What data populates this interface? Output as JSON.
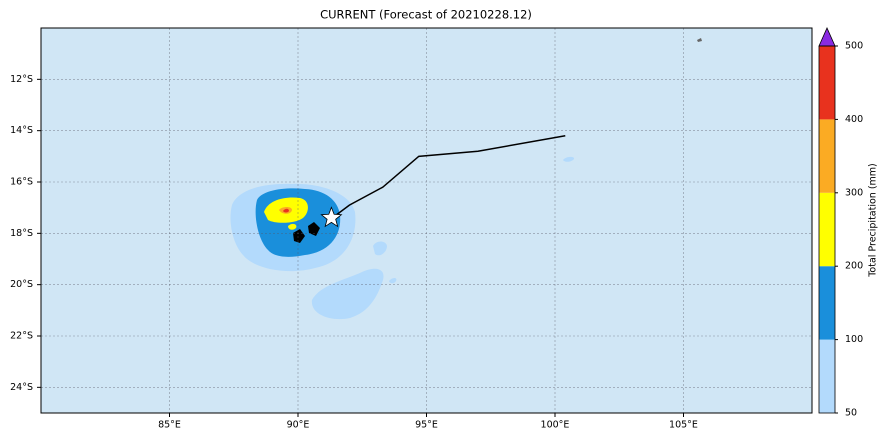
{
  "chart_data": {
    "type": "map",
    "title": "CURRENT (Forecast of 20210228.12)",
    "xlim": [
      80,
      110
    ],
    "ylim": [
      -25,
      -10
    ],
    "xticks": [
      {
        "value": 85,
        "label": "85°E"
      },
      {
        "value": 90,
        "label": "90°E"
      },
      {
        "value": 95,
        "label": "95°E"
      },
      {
        "value": 100,
        "label": "100°E"
      },
      {
        "value": 105,
        "label": "105°E"
      }
    ],
    "yticks": [
      {
        "value": -12,
        "label": "12°S"
      },
      {
        "value": -14,
        "label": "14°S"
      },
      {
        "value": -16,
        "label": "16°S"
      },
      {
        "value": -18,
        "label": "18°S"
      },
      {
        "value": -20,
        "label": "20°S"
      },
      {
        "value": -22,
        "label": "22°S"
      },
      {
        "value": -24,
        "label": "24°S"
      }
    ],
    "grid": true,
    "track": {
      "x": [
        100.4,
        97.0,
        94.7,
        93.3,
        92.0,
        91.2
      ],
      "y": [
        -14.2,
        -14.8,
        -15.0,
        -16.2,
        -16.9,
        -17.5
      ],
      "color": "#000000"
    },
    "storm": {
      "x": 91.3,
      "y": -17.4
    },
    "colorbar": {
      "label": "Total Precipitation (mm)",
      "ticks": [
        50,
        100,
        200,
        300,
        400,
        500
      ],
      "colors": [
        "#b3dafc",
        "#1a8fdb",
        "#ffff00",
        "#fbab23",
        "#e8321e"
      ],
      "extend_color": "#8a2be2"
    }
  }
}
